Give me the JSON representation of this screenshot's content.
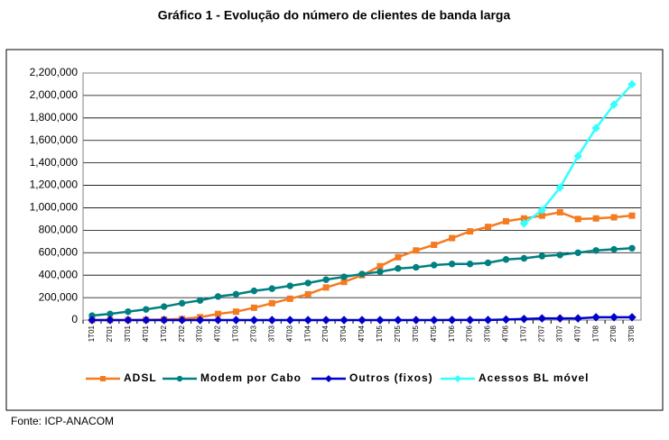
{
  "chart_data": {
    "type": "line",
    "title": "Gráfico 1 - Evolução do número de clientes de banda larga",
    "source": "Fonte: ICP-ANACOM",
    "categories": [
      "1T01",
      "2T01",
      "3T01",
      "4T01",
      "1T02",
      "2T02",
      "3T02",
      "4T02",
      "1T03",
      "2T03",
      "3T03",
      "4T03",
      "1T04",
      "2T04",
      "3T04",
      "4T04",
      "1T05",
      "2T05",
      "3T05",
      "4T05",
      "1T06",
      "2T06",
      "3T06",
      "4T06",
      "1T07",
      "2T07",
      "3T07",
      "4T07",
      "1T08",
      "2T08",
      "3T08"
    ],
    "series": [
      {
        "name": "ADSL",
        "color": "#f47b20",
        "marker": "square",
        "values": [
          0,
          0,
          1000,
          2000,
          5000,
          10000,
          25000,
          55000,
          75000,
          110000,
          150000,
          190000,
          230000,
          290000,
          340000,
          400000,
          480000,
          560000,
          620000,
          670000,
          730000,
          790000,
          830000,
          880000,
          905000,
          930000,
          960000,
          900000,
          905000,
          915000,
          930000
        ]
      },
      {
        "name": "Modem por Cabo",
        "color": "#008080",
        "marker": "circle",
        "values": [
          40000,
          55000,
          75000,
          95000,
          120000,
          150000,
          175000,
          210000,
          230000,
          260000,
          280000,
          305000,
          330000,
          360000,
          385000,
          410000,
          430000,
          460000,
          470000,
          490000,
          500000,
          500000,
          510000,
          540000,
          550000,
          570000,
          580000,
          600000,
          620000,
          630000,
          640000
        ]
      },
      {
        "name": "Outros (fixos)",
        "color": "#0000cc",
        "marker": "diamond",
        "values": [
          0,
          0,
          0,
          0,
          0,
          0,
          0,
          0,
          0,
          0,
          0,
          0,
          0,
          0,
          0,
          0,
          0,
          0,
          0,
          0,
          1000,
          1000,
          1000,
          5000,
          10000,
          15000,
          15000,
          15000,
          25000,
          25000,
          25000
        ]
      },
      {
        "name": "Acessos BL móvel",
        "color": "#33ffff",
        "marker": "diamond",
        "values": [
          null,
          null,
          null,
          null,
          null,
          null,
          null,
          null,
          null,
          null,
          null,
          null,
          null,
          null,
          null,
          null,
          null,
          null,
          null,
          null,
          null,
          null,
          null,
          null,
          860000,
          980000,
          1180000,
          1460000,
          1710000,
          1920000,
          2100000
        ]
      }
    ],
    "ylim": [
      0,
      2200000
    ],
    "yticks": [
      0,
      {
        "value": 200000,
        "label": "200,000"
      },
      {
        "value": 400000,
        "label": "400,000"
      },
      {
        "value": 600000,
        "label": "600,000"
      },
      {
        "value": 800000,
        "label": "800,000"
      },
      {
        "value": 1000000,
        "label": "1,000,000"
      },
      {
        "value": 1200000,
        "label": "1,200,000"
      },
      {
        "value": 1400000,
        "label": "1,400,000"
      },
      {
        "value": 1600000,
        "label": "1,600,000"
      },
      {
        "value": 1800000,
        "label": "1,800,000"
      },
      {
        "value": 2000000,
        "label": "2,000,000"
      },
      {
        "value": 2200000,
        "label": "2,200,000"
      }
    ],
    "grid": true,
    "legend": "bottom"
  }
}
